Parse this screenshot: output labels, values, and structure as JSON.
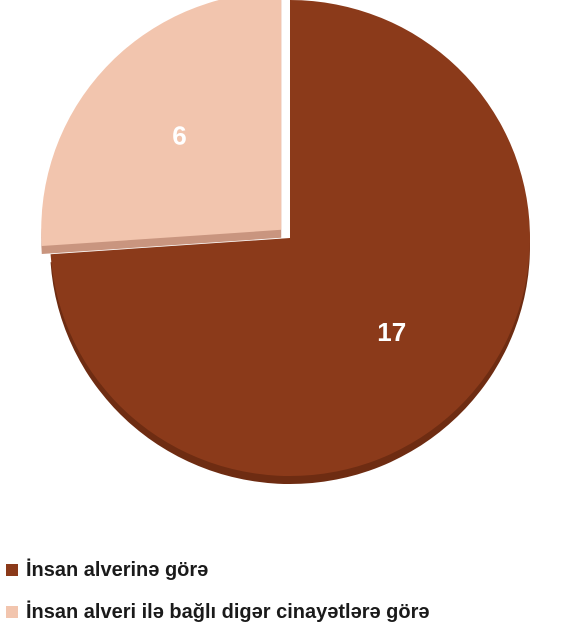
{
  "chart_data": {
    "type": "pie",
    "title": "",
    "categories": [
      "İnsan alverinə görə",
      "İnsan alveri ilə bağlı digər cinayətlərə görə"
    ],
    "values": [
      17,
      6
    ],
    "colors": [
      "#8B3A1A",
      "#F2C5AE"
    ],
    "shadow_colors": [
      "#6E2C12",
      "#C9957F"
    ],
    "exploded": [
      false,
      true
    ],
    "legend_position": "bottom-left",
    "data_labels": true
  }
}
